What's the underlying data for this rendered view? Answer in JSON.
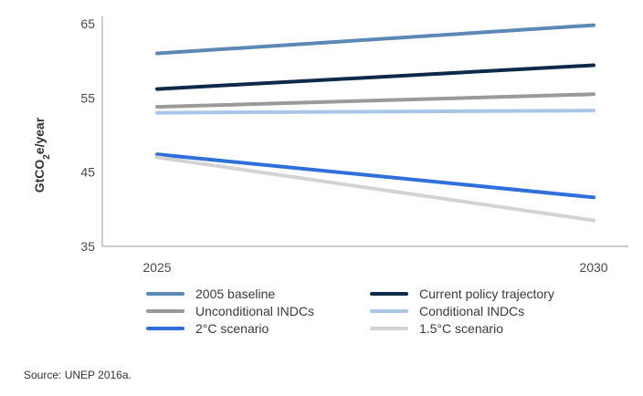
{
  "chart_data": {
    "type": "line",
    "x": [
      "2025",
      "2030"
    ],
    "ylabel": "GtCO2e/year",
    "ylabel_main": "GtCO",
    "ylabel_sub": "2",
    "ylabel_rest": "e/year",
    "ylim": [
      35,
      65
    ],
    "yticks": [
      35,
      45,
      55,
      65
    ],
    "series": [
      {
        "name": "2005 baseline",
        "color": "#5b88b5",
        "values": [
          61.0,
          64.8
        ]
      },
      {
        "name": "Current policy trajectory",
        "color": "#0e2a4a",
        "values": [
          56.2,
          59.4
        ]
      },
      {
        "name": "Unconditional INDCs",
        "color": "#9a9a9a",
        "values": [
          53.8,
          55.5
        ]
      },
      {
        "name": "Conditional INDCs",
        "color": "#a8c6e6",
        "values": [
          53.0,
          53.3
        ]
      },
      {
        "name": "2°C scenario",
        "color": "#2f6fdb",
        "values": [
          47.4,
          41.6
        ]
      },
      {
        "name": "1.5°C scenario",
        "color": "#d3d3d3",
        "values": [
          47.0,
          38.5
        ]
      }
    ],
    "legend_position": "bottom"
  },
  "source": "Source: UNEP 2016a."
}
